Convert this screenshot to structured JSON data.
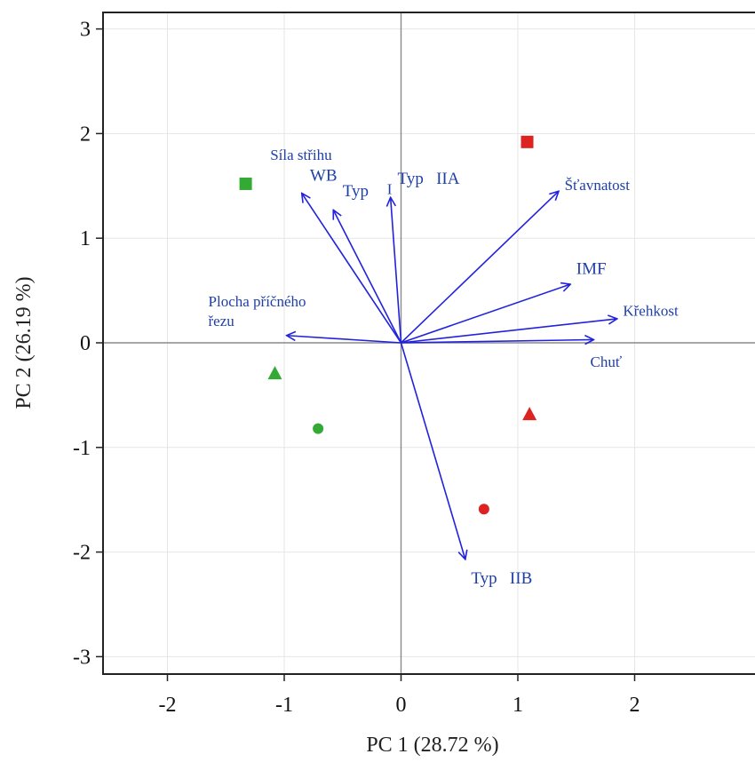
{
  "chart_data": {
    "type": "biplot",
    "xlabel": "PC 1 (28.72 %)",
    "ylabel": "PC 2 (26.19 %)",
    "xlim": [
      -2.5,
      3.0
    ],
    "ylim": [
      -3.15,
      3.15
    ],
    "x_ticks": [
      -2,
      -1,
      0,
      1,
      2
    ],
    "y_ticks": [
      -3,
      -2,
      -1,
      0,
      1,
      2,
      3
    ],
    "grid": true,
    "colors": {
      "vector": "#2222dd",
      "group_a": "#33aa33",
      "group_b": "#dd2222"
    },
    "vectors": [
      {
        "x": -0.85,
        "y": 1.43
      },
      {
        "x": -0.58,
        "y": 1.27
      },
      {
        "x": -0.09,
        "y": 1.39
      },
      {
        "x": 1.35,
        "y": 1.45
      },
      {
        "x": 1.45,
        "y": 0.56
      },
      {
        "x": 1.85,
        "y": 0.23
      },
      {
        "x": 1.65,
        "y": 0.03
      },
      {
        "x": -0.98,
        "y": 0.07
      },
      {
        "x": 0.55,
        "y": -2.07
      }
    ],
    "vector_labels": [
      {
        "text": "Síla střihu",
        "x": -1.12,
        "y": 1.75,
        "size": 17
      },
      {
        "text": "WB",
        "x": -0.78,
        "y": 1.55,
        "size": 19
      },
      {
        "text": "Typ",
        "x": -0.5,
        "y": 1.4,
        "size": 19
      },
      {
        "text": "I",
        "x": -0.12,
        "y": 1.42,
        "size": 17
      },
      {
        "text": "Typ   IIA",
        "x": -0.03,
        "y": 1.52,
        "size": 19
      },
      {
        "text": "Šťavnatost",
        "x": 1.4,
        "y": 1.46,
        "size": 17
      },
      {
        "text": "IMF",
        "x": 1.5,
        "y": 0.66,
        "size": 19
      },
      {
        "text": "Křehkost",
        "x": 1.9,
        "y": 0.26,
        "size": 17
      },
      {
        "text": "Chuť",
        "x": 1.62,
        "y": -0.23,
        "size": 17
      },
      {
        "text": "Plocha příčného",
        "x": -1.65,
        "y": 0.35,
        "size": 17
      },
      {
        "text": "řezu",
        "x": -1.65,
        "y": 0.16,
        "size": 17
      },
      {
        "text": "Typ   IIB",
        "x": 0.6,
        "y": -2.3,
        "size": 19
      }
    ],
    "points": [
      {
        "x": -1.33,
        "y": 1.52,
        "shape": "square",
        "group": "group_a"
      },
      {
        "x": 1.08,
        "y": 1.92,
        "shape": "square",
        "group": "group_b"
      },
      {
        "x": -1.08,
        "y": -0.29,
        "shape": "triangle",
        "group": "group_a"
      },
      {
        "x": 1.1,
        "y": -0.68,
        "shape": "triangle",
        "group": "group_b"
      },
      {
        "x": -0.71,
        "y": -0.82,
        "shape": "circle",
        "group": "group_a"
      },
      {
        "x": 0.71,
        "y": -1.59,
        "shape": "circle",
        "group": "group_b"
      }
    ]
  }
}
